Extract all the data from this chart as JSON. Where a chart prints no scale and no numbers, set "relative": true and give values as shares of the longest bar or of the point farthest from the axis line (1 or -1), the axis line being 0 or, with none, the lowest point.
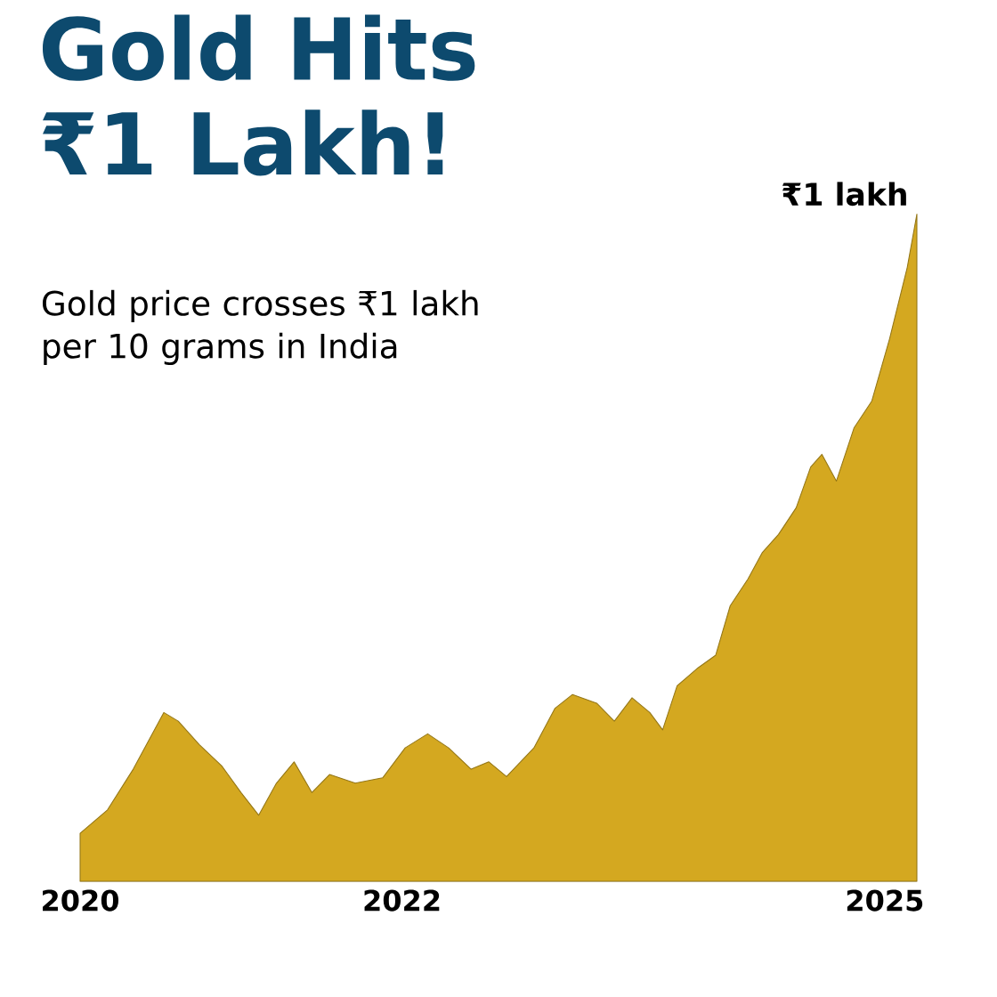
{
  "chart_data": {
    "type": "area",
    "title": "Gold Hits ₹1 Lakh!",
    "subtitle": "Gold price crosses ₹1 lakh per 10 grams in India",
    "relative": true,
    "color": "#d4a820",
    "x": [
      2020.0,
      2020.17,
      2020.33,
      2020.52,
      2020.61,
      2020.74,
      2020.88,
      2021.0,
      2021.11,
      2021.22,
      2021.33,
      2021.44,
      2021.55,
      2021.71,
      2021.88,
      2022.02,
      2022.16,
      2022.29,
      2022.43,
      2022.54,
      2022.65,
      2022.82,
      2022.95,
      2023.06,
      2023.21,
      2023.32,
      2023.43,
      2023.54,
      2023.62,
      2023.71,
      2023.84,
      2023.95,
      2024.04,
      2024.15,
      2024.24,
      2024.34,
      2024.45,
      2024.54,
      2024.61,
      2024.7,
      2024.81,
      2024.92,
      2025.03,
      2025.14,
      2025.2
    ],
    "values": [
      0.072,
      0.107,
      0.168,
      0.253,
      0.24,
      0.205,
      0.173,
      0.133,
      0.099,
      0.147,
      0.179,
      0.133,
      0.16,
      0.147,
      0.155,
      0.2,
      0.221,
      0.2,
      0.168,
      0.179,
      0.157,
      0.2,
      0.259,
      0.28,
      0.267,
      0.24,
      0.275,
      0.253,
      0.227,
      0.293,
      0.32,
      0.339,
      0.413,
      0.453,
      0.493,
      0.52,
      0.56,
      0.621,
      0.64,
      0.6,
      0.68,
      0.72,
      0.813,
      0.92,
      1
    ],
    "xlim": [
      2020,
      2025.2
    ],
    "xticks": [
      2020,
      2022,
      2025
    ],
    "annotations": [
      {
        "text": "₹1 lakh",
        "x": 2025.2,
        "y": 1
      }
    ]
  }
}
